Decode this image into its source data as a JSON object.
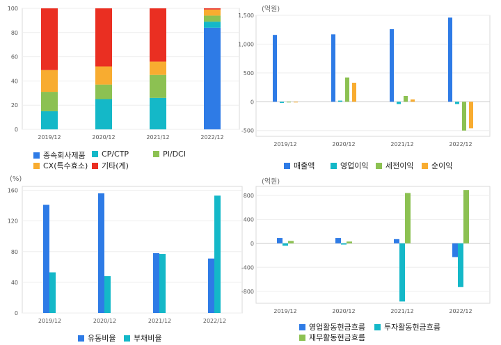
{
  "chart_data": [
    {
      "type": "bar",
      "stacked": true,
      "categories": [
        "2019/12",
        "2020/12",
        "2021/12",
        "2022/12"
      ],
      "ylim": [
        0,
        100
      ],
      "yticks": [
        "0",
        "20",
        "40",
        "60",
        "80",
        "100"
      ],
      "ytick_values": [
        0,
        20,
        40,
        60,
        80,
        100
      ],
      "unit": "",
      "legend_position": "bottom",
      "series": [
        {
          "name": "종속회사제품",
          "color": "#2e7be6",
          "values": [
            0,
            0,
            0,
            84
          ]
        },
        {
          "name": "CP/CTP",
          "color": "#14b8c8",
          "values": [
            15,
            25,
            26,
            5
          ]
        },
        {
          "name": "PI/DCI",
          "color": "#8cc152",
          "values": [
            16,
            12,
            19,
            5
          ]
        },
        {
          "name": "CX(특수효소)",
          "color": "#f8ac30",
          "values": [
            18,
            15,
            11,
            5
          ]
        },
        {
          "name": "기타(계)",
          "color": "#ea2f22",
          "values": [
            51,
            48,
            44,
            1
          ]
        }
      ]
    },
    {
      "type": "bar",
      "categories": [
        "2019/12",
        "2020/12",
        "2021/12",
        "2022/12"
      ],
      "ylim": [
        -600,
        1500
      ],
      "yticks": [
        "-500",
        "0",
        "500",
        "1,000",
        "1,500"
      ],
      "ytick_values": [
        -500,
        0,
        500,
        1000,
        1500
      ],
      "unit": "(억원)",
      "legend_position": "bottom",
      "series": [
        {
          "name": "매출액",
          "color": "#2e7be6",
          "values": [
            1160,
            1170,
            1260,
            1460
          ]
        },
        {
          "name": "영업이익",
          "color": "#14b8c8",
          "values": [
            -20,
            20,
            -40,
            -40
          ]
        },
        {
          "name": "세전이익",
          "color": "#8cc152",
          "values": [
            -10,
            420,
            100,
            -500
          ]
        },
        {
          "name": "순이익",
          "color": "#f8ac30",
          "values": [
            -10,
            330,
            40,
            -460
          ]
        }
      ]
    },
    {
      "type": "bar",
      "categories": [
        "2019/12",
        "2020/12",
        "2021/12",
        "2022/12"
      ],
      "ylim": [
        0,
        165
      ],
      "yticks": [
        "0",
        "40",
        "80",
        "120",
        "160"
      ],
      "ytick_values": [
        0,
        40,
        80,
        120,
        160
      ],
      "unit": "(%)",
      "legend_position": "bottom",
      "series": [
        {
          "name": "유동비율",
          "color": "#2e7be6",
          "values": [
            141,
            156,
            78,
            71
          ]
        },
        {
          "name": "부채비율",
          "color": "#14b8c8",
          "values": [
            53,
            48,
            77,
            153
          ]
        }
      ]
    },
    {
      "type": "bar",
      "categories": [
        "2019/12",
        "2020/12",
        "2021/12",
        "2022/12"
      ],
      "ylim": [
        -1000,
        950
      ],
      "yticks": [
        "-800",
        "-400",
        "0",
        "400",
        "800"
      ],
      "ytick_values": [
        -800,
        -400,
        0,
        400,
        800
      ],
      "unit": "(억원)",
      "legend_position": "bottom",
      "series": [
        {
          "name": "영업활동현금흐름",
          "color": "#2e7be6",
          "values": [
            90,
            90,
            70,
            -230
          ]
        },
        {
          "name": "투자활동현금흐름",
          "color": "#14b8c8",
          "values": [
            -40,
            -20,
            -970,
            -730
          ]
        },
        {
          "name": "재무활동현금흐름",
          "color": "#8cc152",
          "values": [
            40,
            30,
            840,
            890
          ]
        }
      ]
    }
  ]
}
